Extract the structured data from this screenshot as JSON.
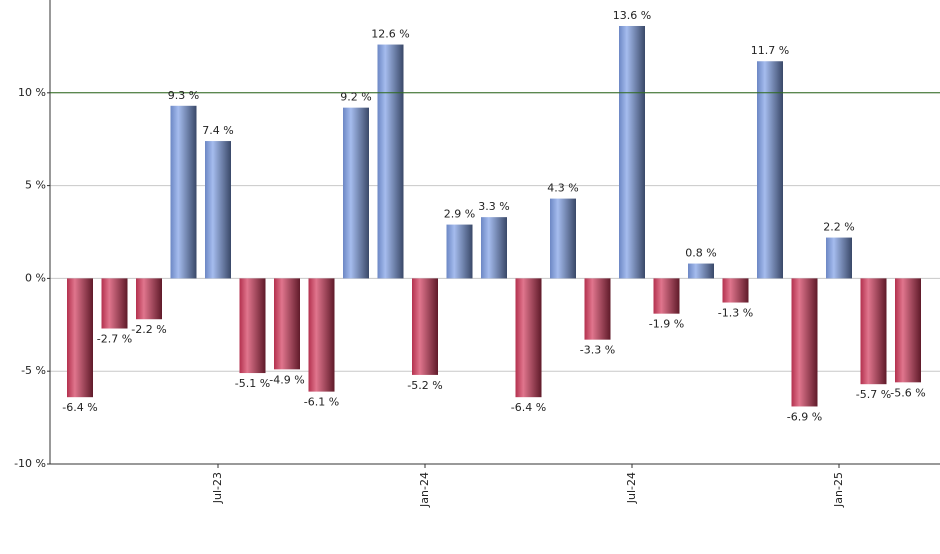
{
  "chart_data": {
    "type": "bar",
    "categories": [
      null,
      null,
      null,
      null,
      "Jul-23",
      null,
      null,
      null,
      null,
      null,
      "Jan-24",
      null,
      null,
      null,
      null,
      null,
      "Jul-24",
      null,
      null,
      null,
      null,
      null,
      "Jan-25",
      null,
      null
    ],
    "values": [
      -6.4,
      -2.7,
      -2.2,
      9.3,
      7.4,
      -5.1,
      -4.9,
      -6.1,
      9.2,
      12.6,
      -5.2,
      2.9,
      3.3,
      -6.4,
      4.3,
      -3.3,
      13.6,
      -1.9,
      0.8,
      -1.3,
      11.7,
      -6.9,
      2.2,
      -5.7,
      -5.6
    ],
    "value_labels": [
      "-6.4 %",
      "-2.7 %",
      "-2.2 %",
      "9.3 %",
      "7.4 %",
      "-5.1 %",
      "-4.9 %",
      "-6.1 %",
      "9.2 %",
      "12.6 %",
      "-5.2 %",
      "2.9 %",
      "3.3 %",
      "-6.4 %",
      "4.3 %",
      "-3.3 %",
      "13.6 %",
      "-1.9 %",
      "0.8 %",
      "-1.3 %",
      "11.7 %",
      "-6.9 %",
      "2.2 %",
      "-5.7 %",
      "-5.6 %"
    ],
    "positive_color": "#7f9fe6",
    "negative_color": "#d23a5c",
    "ylim": [
      -10,
      15
    ],
    "yticks": [
      {
        "value": -10,
        "label": "-10 %"
      },
      {
        "value": -5,
        "label": "-5 %"
      },
      {
        "value": 0,
        "label": "0 %"
      },
      {
        "value": 5,
        "label": "5 %"
      },
      {
        "value": 10,
        "label": "10 %"
      }
    ],
    "reference_line": 10,
    "reference_color": "#2e6b1e",
    "grid": true
  }
}
